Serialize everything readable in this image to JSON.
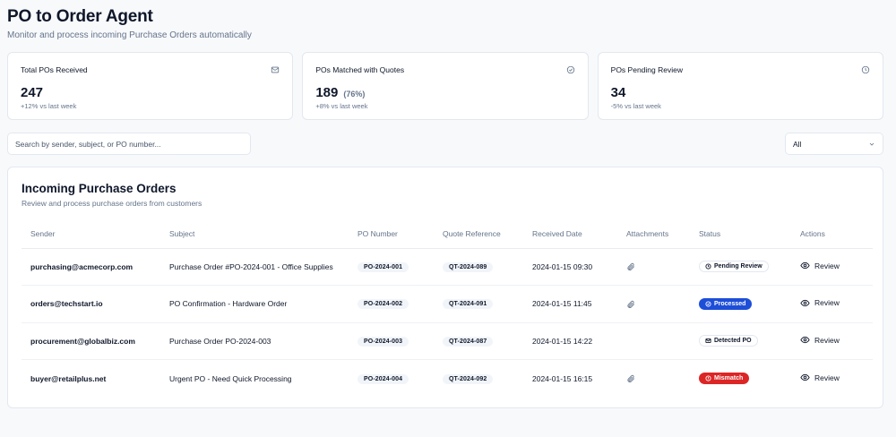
{
  "header": {
    "title": "PO to Order Agent",
    "subtitle": "Monitor and process incoming Purchase Orders automatically"
  },
  "stats": [
    {
      "label": "Total POs Received",
      "value": "247",
      "pct": "",
      "trend": "+12% vs last week",
      "icon": "mail-icon"
    },
    {
      "label": "POs Matched with Quotes",
      "value": "189",
      "pct": "(76%)",
      "trend": "+8% vs last week",
      "icon": "check-circle-icon"
    },
    {
      "label": "POs Pending Review",
      "value": "34",
      "pct": "",
      "trend": "-5% vs last week",
      "icon": "clock-icon"
    }
  ],
  "search": {
    "placeholder": "Search by sender, subject, or PO number..."
  },
  "filter": {
    "value": "All"
  },
  "panel": {
    "title": "Incoming Purchase Orders",
    "subtitle": "Review and process purchase orders from customers"
  },
  "table": {
    "columns": [
      "Sender",
      "Subject",
      "PO Number",
      "Quote Reference",
      "Received Date",
      "Attachments",
      "Status",
      "Actions"
    ],
    "rows": [
      {
        "sender": "purchasing@acmecorp.com",
        "subject": "Purchase Order #PO-2024-001 - Office Supplies",
        "po": "PO-2024-001",
        "quote": "QT-2024-089",
        "date": "2024-01-15 09:30",
        "attachment": true,
        "status": "Pending Review",
        "status_type": "pending",
        "action": "Review"
      },
      {
        "sender": "orders@techstart.io",
        "subject": "PO Confirmation - Hardware Order",
        "po": "PO-2024-002",
        "quote": "QT-2024-091",
        "date": "2024-01-15 11:45",
        "attachment": true,
        "status": "Processed",
        "status_type": "processed",
        "action": "Review"
      },
      {
        "sender": "procurement@globalbiz.com",
        "subject": "Purchase Order PO-2024-003",
        "po": "PO-2024-003",
        "quote": "QT-2024-087",
        "date": "2024-01-15 14:22",
        "attachment": false,
        "status": "Detected PO",
        "status_type": "detected",
        "action": "Review"
      },
      {
        "sender": "buyer@retailplus.net",
        "subject": "Urgent PO - Need Quick Processing",
        "po": "PO-2024-004",
        "quote": "QT-2024-092",
        "date": "2024-01-15 16:15",
        "attachment": true,
        "status": "Mismatch",
        "status_type": "mismatch",
        "action": "Review"
      }
    ]
  },
  "colors": {
    "processed": "#1d4ed8",
    "mismatch": "#dc2626",
    "text": "#0f172a",
    "muted": "#64748b"
  }
}
